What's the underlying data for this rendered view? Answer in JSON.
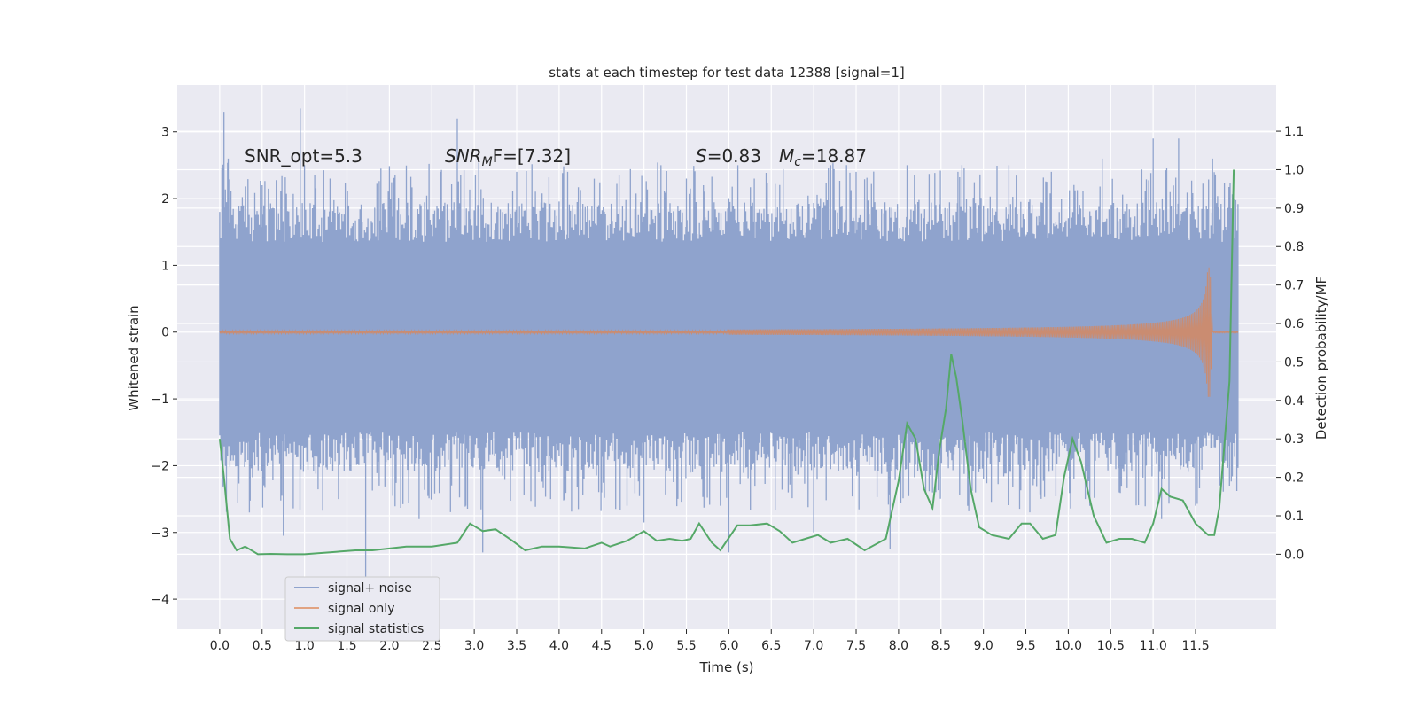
{
  "chart_data": {
    "type": "line",
    "title": "stats at each timestep for test data 12388 [signal=1]",
    "xlabel": "Time (s)",
    "ylabel_left": "Whitened strain",
    "ylabel_right": "Detection probability/MF",
    "xlim": [
      -0.5,
      12.45
    ],
    "ylim_left": [
      -4.45,
      3.7
    ],
    "ylim_right": [
      -0.195,
      1.22
    ],
    "x_ticks": [
      0.0,
      0.5,
      1.0,
      1.5,
      2.0,
      2.5,
      3.0,
      3.5,
      4.0,
      4.5,
      5.0,
      5.5,
      6.0,
      6.5,
      7.0,
      7.5,
      8.0,
      8.5,
      9.0,
      9.5,
      10.0,
      10.5,
      11.0,
      11.5
    ],
    "x_tick_labels": [
      "0.0",
      "0.5",
      "1.0",
      "1.5",
      "2.0",
      "2.5",
      "3.0",
      "3.5",
      "4.0",
      "4.5",
      "5.0",
      "5.5",
      "6.0",
      "6.5",
      "7.0",
      "7.5",
      "8.0",
      "8.5",
      "9.0",
      "9.5",
      "10.0",
      "10.5",
      "11.0",
      "11.5"
    ],
    "y_left_ticks": [
      3,
      2,
      1,
      0,
      -1,
      -2,
      -3,
      -4
    ],
    "y_left_tick_labels": [
      "3",
      "2",
      "1",
      "0",
      "−1",
      "−2",
      "−3",
      "−4"
    ],
    "y_right_ticks": [
      1.1,
      1.0,
      0.9,
      0.8,
      0.7,
      0.6,
      0.5,
      0.4,
      0.3,
      0.2,
      0.1,
      0.0
    ],
    "y_right_tick_labels": [
      "1.1",
      "1.0",
      "0.9",
      "0.8",
      "0.7",
      "0.6",
      "0.5",
      "0.4",
      "0.3",
      "0.2",
      "0.1",
      "0.0"
    ],
    "grid": true,
    "legend_position": "lower-left",
    "annotations": {
      "snr_opt": "SNR_opt=5.3",
      "snr_mf_prefix": "SNR",
      "snr_mf_sub": "M",
      "snr_mf_rest": "F=[7.32]",
      "s_italic": "S",
      "s_rest": "=0.83",
      "mc_italic": "M",
      "mc_sub": "c",
      "mc_rest": "=18.87"
    },
    "series": [
      {
        "name": "signal+ noise",
        "color": "#8fa3cd",
        "axis": "left",
        "x_range": [
          0.0,
          12.0
        ],
        "band_low": -1.5,
        "band_high": 1.35,
        "spikes": [
          [
            0.03,
            2.4
          ],
          [
            0.05,
            3.3
          ],
          [
            0.1,
            2.6
          ],
          [
            0.35,
            -2.7
          ],
          [
            0.5,
            2.2
          ],
          [
            0.75,
            -3.05
          ],
          [
            0.95,
            3.35
          ],
          [
            1.0,
            2.5
          ],
          [
            1.3,
            2.3
          ],
          [
            1.4,
            -2.5
          ],
          [
            1.72,
            -4.0
          ],
          [
            1.9,
            2.45
          ],
          [
            2.2,
            2.2
          ],
          [
            2.35,
            -2.8
          ],
          [
            2.6,
            2.4
          ],
          [
            2.8,
            3.2
          ],
          [
            2.9,
            -2.6
          ],
          [
            3.1,
            -3.3
          ],
          [
            3.5,
            2.4
          ],
          [
            3.9,
            -2.5
          ],
          [
            4.1,
            2.4
          ],
          [
            4.5,
            -2.4
          ],
          [
            4.8,
            -2.6
          ],
          [
            5.0,
            -2.85
          ],
          [
            5.2,
            2.5
          ],
          [
            5.5,
            2.3
          ],
          [
            5.7,
            2.2
          ],
          [
            5.9,
            -2.6
          ],
          [
            6.0,
            -3.3
          ],
          [
            6.3,
            2.3
          ],
          [
            6.7,
            -2.4
          ],
          [
            7.0,
            -3.0
          ],
          [
            7.2,
            2.5
          ],
          [
            7.5,
            2.4
          ],
          [
            7.9,
            -3.25
          ],
          [
            8.1,
            2.5
          ],
          [
            8.4,
            -2.4
          ],
          [
            8.7,
            2.4
          ],
          [
            9.0,
            -2.2
          ],
          [
            9.3,
            2.5
          ],
          [
            9.6,
            -2.2
          ],
          [
            9.8,
            2.4
          ],
          [
            10.2,
            -2.5
          ],
          [
            10.4,
            2.6
          ],
          [
            10.6,
            -2.4
          ],
          [
            11.0,
            2.9
          ],
          [
            11.1,
            -2.8
          ],
          [
            11.3,
            2.9
          ],
          [
            11.5,
            -2.6
          ],
          [
            11.7,
            2.6
          ],
          [
            11.9,
            -2.3
          ],
          [
            11.95,
            2.0
          ]
        ]
      },
      {
        "name": "signal only",
        "color": "#dd8452",
        "axis": "left",
        "x_range": [
          0.0,
          12.0
        ],
        "chirp_peak_time": 11.67,
        "chirp_peak_amplitude": 0.97,
        "merger_end_time": 11.7
      },
      {
        "name": "signal statistics",
        "color": "#55a868",
        "axis": "right",
        "x": [
          0.0,
          0.05,
          0.12,
          0.2,
          0.3,
          0.45,
          0.6,
          0.8,
          1.0,
          1.3,
          1.6,
          1.8,
          2.0,
          2.2,
          2.5,
          2.8,
          2.95,
          3.1,
          3.25,
          3.45,
          3.6,
          3.8,
          4.0,
          4.3,
          4.5,
          4.6,
          4.8,
          5.0,
          5.15,
          5.3,
          5.45,
          5.55,
          5.65,
          5.8,
          5.9,
          6.1,
          6.25,
          6.45,
          6.6,
          6.75,
          6.9,
          7.05,
          7.2,
          7.4,
          7.6,
          7.85,
          8.0,
          8.1,
          8.2,
          8.3,
          8.4,
          8.48,
          8.56,
          8.62,
          8.68,
          8.75,
          8.85,
          8.95,
          9.1,
          9.3,
          9.45,
          9.55,
          9.7,
          9.85,
          9.95,
          10.05,
          10.15,
          10.3,
          10.45,
          10.6,
          10.75,
          10.9,
          11.0,
          11.1,
          11.2,
          11.35,
          11.5,
          11.65,
          11.72,
          11.78,
          11.9,
          11.95
        ],
        "values": [
          0.3,
          0.2,
          0.04,
          0.01,
          0.02,
          0.0,
          0.001,
          0.0,
          0.0,
          0.005,
          0.01,
          0.01,
          0.015,
          0.02,
          0.02,
          0.03,
          0.08,
          0.06,
          0.065,
          0.035,
          0.01,
          0.02,
          0.02,
          0.015,
          0.03,
          0.02,
          0.035,
          0.06,
          0.035,
          0.04,
          0.035,
          0.04,
          0.08,
          0.03,
          0.01,
          0.075,
          0.075,
          0.08,
          0.06,
          0.03,
          0.04,
          0.05,
          0.03,
          0.04,
          0.01,
          0.04,
          0.19,
          0.34,
          0.3,
          0.17,
          0.12,
          0.27,
          0.38,
          0.52,
          0.46,
          0.35,
          0.17,
          0.07,
          0.05,
          0.04,
          0.08,
          0.08,
          0.04,
          0.05,
          0.2,
          0.3,
          0.24,
          0.1,
          0.03,
          0.04,
          0.04,
          0.03,
          0.08,
          0.17,
          0.15,
          0.14,
          0.08,
          0.05,
          0.05,
          0.12,
          0.45,
          1.0
        ]
      }
    ]
  }
}
